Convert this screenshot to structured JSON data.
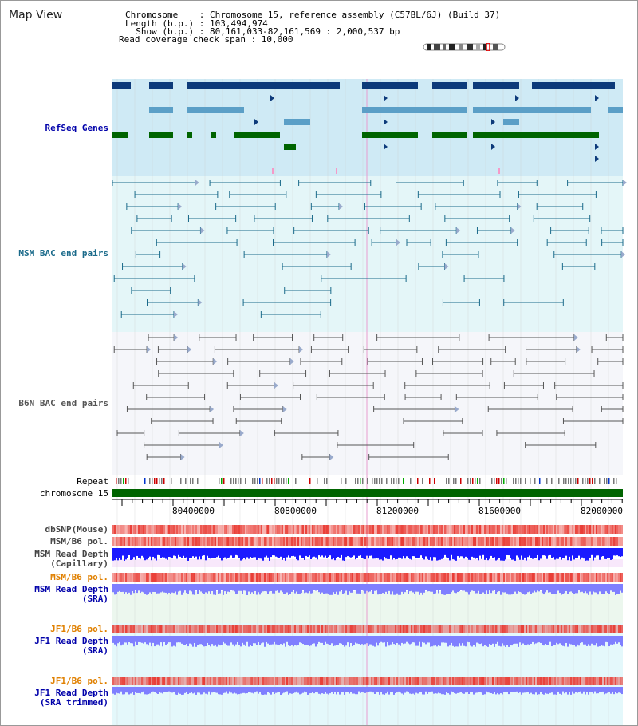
{
  "title": "Map View",
  "header": {
    "chromosome_line": "Chromosome    : Chromosome 15, reference assembly (C57BL/6J) (Build 37)",
    "length_line": "Length (b.p.) : 103,494,974",
    "show_line": "  Show (b.p.) : 80,161,033-82,161,569 : 2,000,537 bp",
    "coverage_line": "Read coverage check span : 10,000"
  },
  "tracks": {
    "refseq": "RefSeq Genes",
    "msm_bac": "MSM BAC end pairs",
    "b6n_bac": "B6N BAC end pairs",
    "repeat": "Repeat",
    "chromosome": "chromosome 15",
    "dbsnp": "dbSNP(Mouse)",
    "msm_pol_1": "MSM/B6 pol.",
    "msm_depth_cap": "MSM Read Depth\n(Capillary)",
    "msm_pol_2": "MSM/B6 pol.",
    "msm_depth_sra": "MSM Read Depth\n(SRA)",
    "jf1_pol_1": "JF1/B6 pol.",
    "jf1_depth_sra": "JF1 Read Depth\n(SRA)",
    "jf1_pol_2": "JF1/B6 pol.",
    "jf1_depth_trim": "JF1 Read Depth\n(SRA trimmed)"
  },
  "axis": {
    "ticks": [
      "80400000",
      "80800000",
      "81200000",
      "81600000",
      "82000000"
    ]
  },
  "colors": {
    "refseq_dark": "#0d3a7a",
    "refseq_light": "#5b9fc7",
    "refseq_green": "#006400",
    "msm_line": "#1a6a8a",
    "b6n_line": "#555555",
    "chromosome_bar": "#006400",
    "pol_red": "#e8322a",
    "depth_blue": "#1a1aff",
    "depth_light": "#7f7fff"
  }
}
